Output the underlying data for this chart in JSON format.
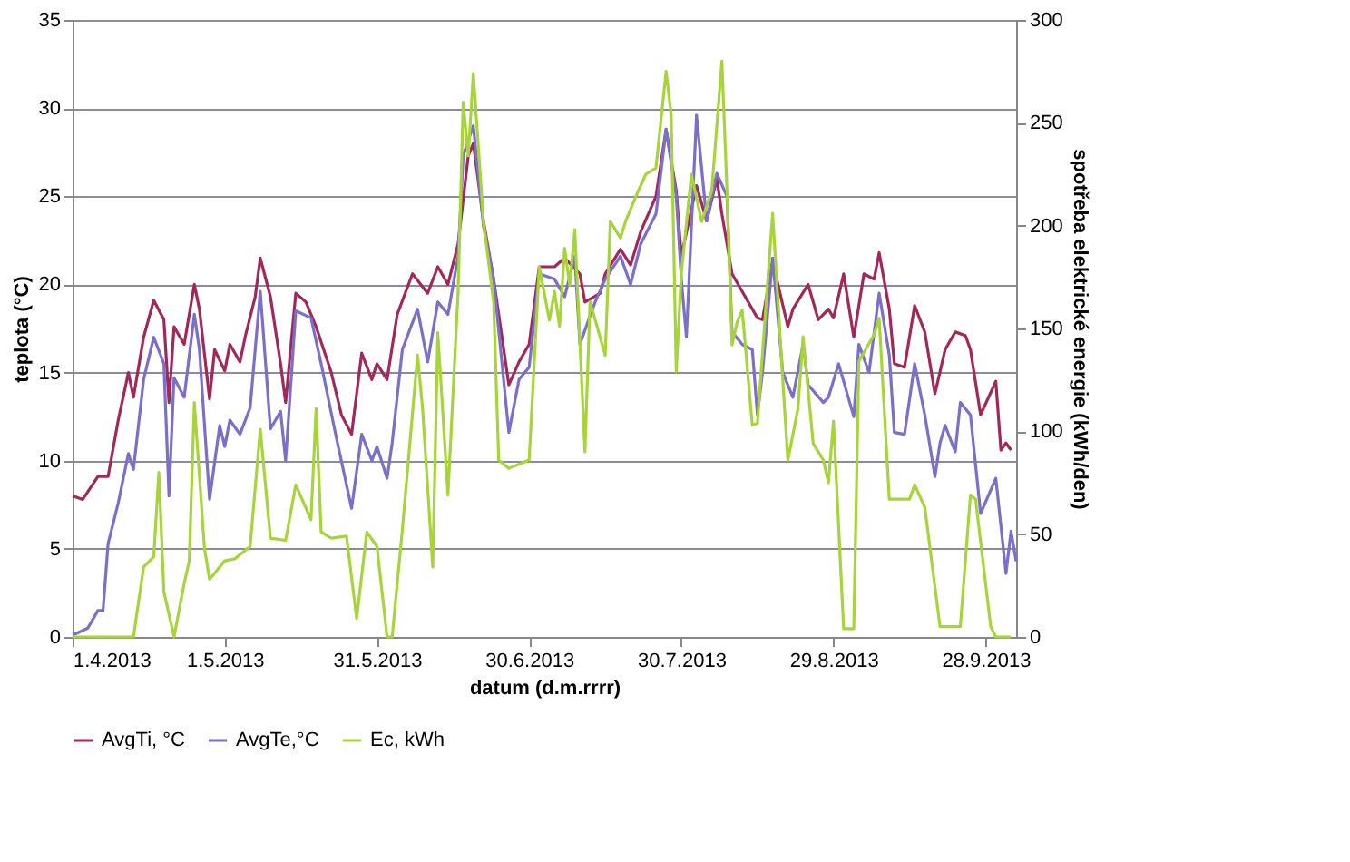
{
  "chart_data": {
    "type": "line",
    "xlabel": "datum (d.m.rrrr)",
    "ylabel": "teplota (°C)",
    "y2label": "spotřeba elektrické energie (kWh/den)",
    "xlim": [
      "2013-04-01",
      "2013-10-04"
    ],
    "xticks": [
      {
        "value": "2013-04-01",
        "label": "1.4.2013"
      },
      {
        "value": "2013-05-01",
        "label": "1.5.2013"
      },
      {
        "value": "2013-05-31",
        "label": "31.5.2013"
      },
      {
        "value": "2013-06-30",
        "label": "30.6.2013"
      },
      {
        "value": "2013-07-30",
        "label": "30.7.2013"
      },
      {
        "value": "2013-08-29",
        "label": "29.8.2013"
      },
      {
        "value": "2013-09-28",
        "label": "28.9.2013"
      }
    ],
    "ylim": [
      0,
      35
    ],
    "yticks": [
      0,
      5,
      10,
      15,
      20,
      25,
      30,
      35
    ],
    "y2lim": [
      0,
      300
    ],
    "y2ticks": [
      0,
      50,
      100,
      150,
      200,
      250,
      300
    ],
    "grid": "y",
    "legend": "bottom",
    "line_style": "solid",
    "marker": "none",
    "series": [
      {
        "name": "AvgTi, °C",
        "color": "#a0295a",
        "x": [
          "2013-04-01",
          "2013-04-03",
          "2013-04-06",
          "2013-04-08",
          "2013-04-10",
          "2013-04-12",
          "2013-04-13",
          "2013-04-15",
          "2013-04-17",
          "2013-04-19",
          "2013-04-20",
          "2013-04-21",
          "2013-04-23",
          "2013-04-25",
          "2013-04-26",
          "2013-04-28",
          "2013-04-29",
          "2013-05-01",
          "2013-05-02",
          "2013-05-04",
          "2013-05-05",
          "2013-05-07",
          "2013-05-08",
          "2013-05-10",
          "2013-05-12",
          "2013-05-13",
          "2013-05-15",
          "2013-05-17",
          "2013-05-19",
          "2013-05-22",
          "2013-05-24",
          "2013-05-26",
          "2013-05-28",
          "2013-05-30",
          "2013-05-31",
          "2013-06-02",
          "2013-06-04",
          "2013-06-07",
          "2013-06-10",
          "2013-06-12",
          "2013-06-14",
          "2013-06-16",
          "2013-06-18",
          "2013-06-19",
          "2013-06-21",
          "2013-06-23",
          "2013-06-26",
          "2013-06-28",
          "2013-06-30",
          "2013-07-02",
          "2013-07-05",
          "2013-07-07",
          "2013-07-10",
          "2013-07-11",
          "2013-07-14",
          "2013-07-15",
          "2013-07-18",
          "2013-07-20",
          "2013-07-22",
          "2013-07-25",
          "2013-07-27",
          "2013-07-29",
          "2013-07-30",
          "2013-08-02",
          "2013-08-04",
          "2013-08-06",
          "2013-08-07",
          "2013-08-09",
          "2013-08-11",
          "2013-08-14",
          "2013-08-15",
          "2013-08-17",
          "2013-08-20",
          "2013-08-21",
          "2013-08-24",
          "2013-08-26",
          "2013-08-28",
          "2013-08-29",
          "2013-08-31",
          "2013-09-02",
          "2013-09-04",
          "2013-09-06",
          "2013-09-07",
          "2013-09-09",
          "2013-09-10",
          "2013-09-12",
          "2013-09-14",
          "2013-09-16",
          "2013-09-18",
          "2013-09-20",
          "2013-09-22",
          "2013-09-24",
          "2013-09-25",
          "2013-09-27",
          "2013-09-30",
          "2013-10-01",
          "2013-10-02",
          "2013-10-03"
        ],
        "values": [
          8.0,
          7.8,
          9.1,
          9.1,
          12.3,
          15.0,
          13.6,
          17.0,
          19.1,
          18.0,
          13.3,
          17.6,
          16.6,
          20.0,
          18.6,
          13.5,
          16.3,
          15.1,
          16.6,
          15.6,
          17.0,
          19.3,
          21.5,
          19.3,
          15.5,
          13.3,
          19.5,
          19.0,
          17.6,
          15.0,
          12.6,
          11.5,
          16.1,
          14.6,
          15.5,
          14.6,
          18.3,
          20.6,
          19.5,
          21.0,
          20.0,
          22.3,
          27.3,
          28.0,
          23.6,
          20.3,
          14.3,
          15.6,
          16.6,
          21.0,
          21.0,
          21.5,
          20.6,
          19.0,
          19.5,
          20.6,
          22.0,
          21.1,
          23.0,
          25.0,
          28.8,
          25.3,
          21.6,
          25.6,
          23.6,
          26.0,
          24.0,
          20.6,
          19.6,
          18.1,
          18.0,
          21.3,
          17.6,
          18.6,
          20.0,
          18.0,
          18.6,
          18.1,
          20.6,
          17.0,
          20.6,
          20.3,
          21.8,
          18.6,
          15.5,
          15.3,
          18.8,
          17.3,
          13.8,
          16.3,
          17.3,
          17.1,
          16.3,
          12.6,
          14.5,
          10.6,
          11.0,
          10.6
        ]
      },
      {
        "name": "AvgTe,°C",
        "color": "#7b6fc8",
        "x": [
          "2013-04-01",
          "2013-04-04",
          "2013-04-06",
          "2013-04-07",
          "2013-04-08",
          "2013-04-10",
          "2013-04-12",
          "2013-04-13",
          "2013-04-15",
          "2013-04-17",
          "2013-04-19",
          "2013-04-20",
          "2013-04-21",
          "2013-04-23",
          "2013-04-25",
          "2013-04-26",
          "2013-04-28",
          "2013-04-30",
          "2013-05-01",
          "2013-05-02",
          "2013-05-04",
          "2013-05-06",
          "2013-05-08",
          "2013-05-10",
          "2013-05-12",
          "2013-05-13",
          "2013-05-15",
          "2013-05-18",
          "2013-05-20",
          "2013-05-23",
          "2013-05-26",
          "2013-05-28",
          "2013-05-30",
          "2013-05-31",
          "2013-06-02",
          "2013-06-03",
          "2013-06-05",
          "2013-06-08",
          "2013-06-10",
          "2013-06-12",
          "2013-06-14",
          "2013-06-16",
          "2013-06-17",
          "2013-06-19",
          "2013-06-21",
          "2013-06-23",
          "2013-06-26",
          "2013-06-28",
          "2013-06-30",
          "2013-07-02",
          "2013-07-05",
          "2013-07-07",
          "2013-07-09",
          "2013-07-10",
          "2013-07-13",
          "2013-07-15",
          "2013-07-18",
          "2013-07-20",
          "2013-07-22",
          "2013-07-25",
          "2013-07-27",
          "2013-07-29",
          "2013-07-30",
          "2013-07-31",
          "2013-08-02",
          "2013-08-04",
          "2013-08-06",
          "2013-08-08",
          "2013-08-09",
          "2013-08-11",
          "2013-08-13",
          "2013-08-14",
          "2013-08-15",
          "2013-08-17",
          "2013-08-19",
          "2013-08-21",
          "2013-08-23",
          "2013-08-24",
          "2013-08-27",
          "2013-08-28",
          "2013-08-30",
          "2013-09-02",
          "2013-09-03",
          "2013-09-05",
          "2013-09-07",
          "2013-09-09",
          "2013-09-10",
          "2013-09-12",
          "2013-09-14",
          "2013-09-16",
          "2013-09-18",
          "2013-09-19",
          "2013-09-20",
          "2013-09-22",
          "2013-09-23",
          "2013-09-25",
          "2013-09-27",
          "2013-09-30",
          "2013-10-02",
          "2013-10-03",
          "2013-10-04"
        ],
        "values": [
          0.1,
          0.5,
          1.5,
          1.5,
          5.3,
          7.6,
          10.4,
          9.5,
          14.6,
          17.0,
          15.5,
          8.0,
          14.7,
          13.6,
          18.3,
          16.3,
          7.8,
          12.0,
          10.8,
          12.3,
          11.5,
          13.0,
          19.6,
          11.8,
          12.8,
          10.0,
          18.5,
          18.1,
          15.5,
          11.3,
          7.3,
          11.5,
          10.0,
          10.8,
          9.0,
          11.0,
          16.3,
          18.6,
          15.6,
          19.0,
          18.3,
          21.6,
          27.3,
          29.0,
          23.3,
          20.3,
          11.6,
          14.6,
          15.3,
          20.6,
          20.3,
          19.3,
          21.6,
          16.6,
          19.0,
          20.3,
          21.6,
          20.0,
          22.3,
          24.0,
          28.8,
          25.0,
          20.3,
          17.0,
          29.6,
          23.6,
          26.3,
          25.0,
          17.3,
          16.6,
          16.3,
          12.6,
          15.0,
          21.5,
          15.0,
          13.6,
          16.6,
          14.3,
          13.3,
          13.6,
          15.5,
          12.5,
          16.6,
          15.0,
          19.5,
          16.0,
          11.6,
          11.5,
          15.5,
          12.6,
          9.1,
          11.0,
          12.0,
          10.5,
          13.3,
          12.6,
          7.0,
          9.0,
          3.6,
          6.0,
          4.3
        ]
      },
      {
        "name": "Ec, kWh",
        "color": "#a6d43a",
        "axis": "y2",
        "x": [
          "2013-04-01",
          "2013-04-13",
          "2013-04-15",
          "2013-04-17",
          "2013-04-18",
          "2013-04-19",
          "2013-04-21",
          "2013-04-23",
          "2013-04-24",
          "2013-04-25",
          "2013-04-27",
          "2013-04-28",
          "2013-05-01",
          "2013-05-03",
          "2013-05-06",
          "2013-05-08",
          "2013-05-10",
          "2013-05-13",
          "2013-05-15",
          "2013-05-18",
          "2013-05-19",
          "2013-05-20",
          "2013-05-22",
          "2013-05-25",
          "2013-05-27",
          "2013-05-29",
          "2013-05-31",
          "2013-06-02",
          "2013-06-03",
          "2013-06-05",
          "2013-06-08",
          "2013-06-09",
          "2013-06-11",
          "2013-06-12",
          "2013-06-14",
          "2013-06-16",
          "2013-06-17",
          "2013-06-18",
          "2013-06-19",
          "2013-06-21",
          "2013-06-23",
          "2013-06-24",
          "2013-06-26",
          "2013-06-30",
          "2013-07-02",
          "2013-07-04",
          "2013-07-05",
          "2013-07-06",
          "2013-07-07",
          "2013-07-08",
          "2013-07-09",
          "2013-07-11",
          "2013-07-12",
          "2013-07-15",
          "2013-07-16",
          "2013-07-18",
          "2013-07-19",
          "2013-07-21",
          "2013-07-23",
          "2013-07-25",
          "2013-07-27",
          "2013-07-28",
          "2013-07-29",
          "2013-07-30",
          "2013-08-01",
          "2013-08-03",
          "2013-08-05",
          "2013-08-07",
          "2013-08-08",
          "2013-08-09",
          "2013-08-10",
          "2013-08-11",
          "2013-08-13",
          "2013-08-14",
          "2013-08-17",
          "2013-08-19",
          "2013-08-20",
          "2013-08-22",
          "2013-08-23",
          "2013-08-25",
          "2013-08-27",
          "2013-08-28",
          "2013-08-29",
          "2013-08-31",
          "2013-09-02",
          "2013-09-03",
          "2013-09-06",
          "2013-09-07",
          "2013-09-09",
          "2013-09-13",
          "2013-09-14",
          "2013-09-16",
          "2013-09-19",
          "2013-09-23",
          "2013-09-25",
          "2013-09-26",
          "2013-09-29",
          "2013-09-30",
          "2013-10-03"
        ],
        "values": [
          0,
          0,
          34,
          39,
          80,
          22,
          0,
          26,
          37,
          114,
          43,
          28,
          37,
          38,
          44,
          101,
          48,
          47,
          74,
          57,
          111,
          51,
          48,
          49,
          9,
          51,
          44,
          0,
          0,
          52,
          137,
          111,
          34,
          148,
          69,
          168,
          260,
          234,
          274,
          202,
          163,
          86,
          82,
          86,
          180,
          154,
          168,
          151,
          189,
          171,
          198,
          90,
          163,
          137,
          202,
          194,
          202,
          214,
          225,
          228,
          275,
          254,
          129,
          177,
          225,
          202,
          217,
          280,
          217,
          142,
          153,
          159,
          103,
          104,
          206,
          125,
          86,
          111,
          146,
          94,
          86,
          75,
          105,
          4,
          4,
          134,
          147,
          155,
          67,
          67,
          74,
          63,
          5,
          5,
          69,
          67,
          5,
          0,
          0
        ]
      }
    ]
  }
}
